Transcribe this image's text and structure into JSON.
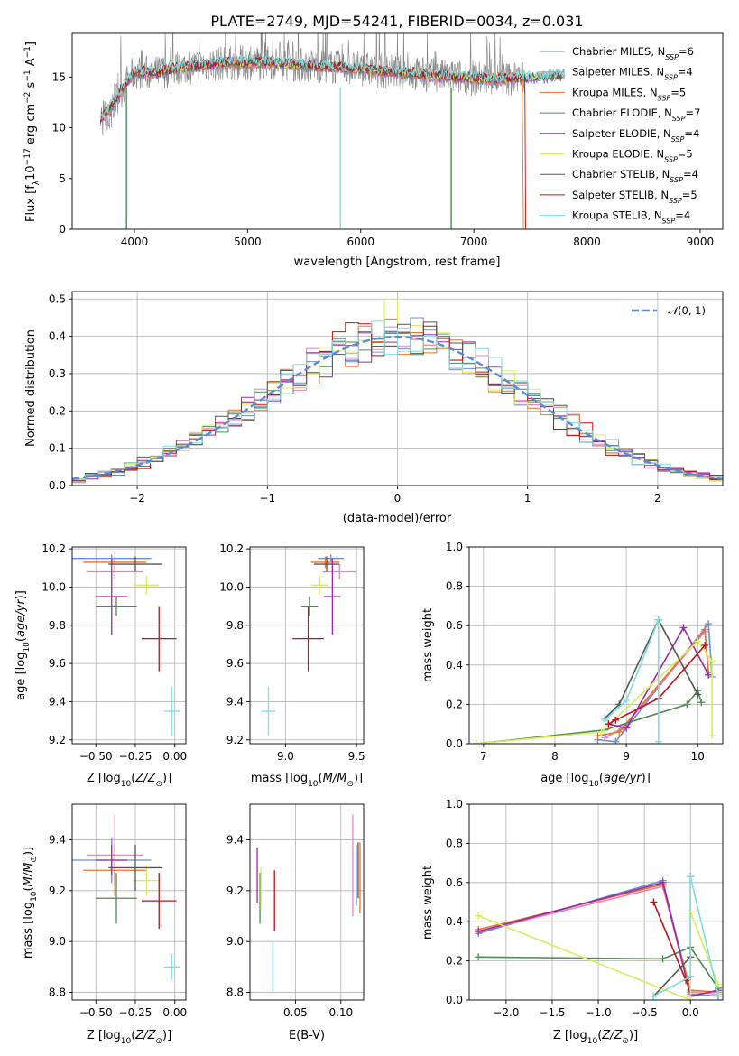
{
  "title": "PLATE=2749, MJD=54241, FIBERID=0034, z=0.031",
  "colors": {
    "chabrier_miles": "#6a8fd6",
    "salpeter_miles": "#e882c0",
    "kroupa_miles": "#e8742a",
    "chabrier_elodie": "#4f8a55",
    "salpeter_elodie": "#9b2aa5",
    "kroupa_elodie": "#d6ee58",
    "chabrier_stelib": "#555555",
    "salpeter_stelib": "#b8141b",
    "kroupa_stelib": "#7fdede",
    "observed": "#808080",
    "normal_curve": "#5b8bd6",
    "grid": "#b0b0b0"
  },
  "series_legend": [
    {
      "key": "chabrier_miles",
      "label": "Chabrier MILES, N",
      "sub": "SSP",
      "n": "=6"
    },
    {
      "key": "salpeter_miles",
      "label": "Salpeter MILES, N",
      "sub": "SSP",
      "n": "=4"
    },
    {
      "key": "kroupa_miles",
      "label": "Kroupa MILES, N",
      "sub": "SSP",
      "n": "=5"
    },
    {
      "key": "chabrier_elodie",
      "label": "Chabrier ELODIE, N",
      "sub": "SSP",
      "n": "=7"
    },
    {
      "key": "salpeter_elodie",
      "label": "Salpeter ELODIE, N",
      "sub": "SSP",
      "n": "=4"
    },
    {
      "key": "kroupa_elodie",
      "label": "Kroupa ELODIE, N",
      "sub": "SSP",
      "n": "=5"
    },
    {
      "key": "chabrier_stelib",
      "label": "Chabrier STELIB, N",
      "sub": "SSP",
      "n": "=4"
    },
    {
      "key": "salpeter_stelib",
      "label": "Salpeter STELIB, N",
      "sub": "SSP",
      "n": "=5"
    },
    {
      "key": "kroupa_stelib",
      "label": "Kroupa STELIB, N",
      "sub": "SSP",
      "n": "=4"
    }
  ],
  "chart_data": [
    {
      "id": "spectrum",
      "type": "line",
      "xlabel": "wavelength [Angstrom, rest frame]",
      "ylabel": "Flux [f_λ 10^-17 erg cm^-2 s^-1 A^-1]",
      "xlim": [
        3450,
        9200
      ],
      "ylim": [
        0,
        19.3
      ],
      "xticks": [
        4000,
        5000,
        6000,
        7000,
        8000,
        9000
      ],
      "yticks": [
        0,
        5,
        10,
        15
      ],
      "grid": false,
      "legend": "upper-right",
      "observed": {
        "x_range": [
          3700,
          7450
        ],
        "level": 16.0,
        "noise": 1.6
      },
      "model_continuum": [
        {
          "x": 3700,
          "y": 10.8
        },
        {
          "x": 3800,
          "y": 12.2
        },
        {
          "x": 3900,
          "y": 14.0
        },
        {
          "x": 4000,
          "y": 15.5
        },
        {
          "x": 4200,
          "y": 15.4
        },
        {
          "x": 4400,
          "y": 15.9
        },
        {
          "x": 4800,
          "y": 16.4
        },
        {
          "x": 5200,
          "y": 16.4
        },
        {
          "x": 5600,
          "y": 16.1
        },
        {
          "x": 6000,
          "y": 15.8
        },
        {
          "x": 6400,
          "y": 15.4
        },
        {
          "x": 6800,
          "y": 15.0
        },
        {
          "x": 7200,
          "y": 14.8
        },
        {
          "x": 7600,
          "y": 15.0
        },
        {
          "x": 7800,
          "y": 15.3
        }
      ],
      "model_end": {
        "kroupa_miles": 7430,
        "salpeter_stelib": 7450,
        "others": 7800
      },
      "dips": [
        {
          "x": 3930,
          "y": 0
        },
        {
          "x": 5820,
          "y": 0
        },
        {
          "x": 6800,
          "y": 0
        }
      ]
    },
    {
      "id": "residual_hist",
      "type": "step",
      "xlabel": "(data-model)/error",
      "ylabel": "Normed distribution",
      "xlim": [
        -2.5,
        2.5
      ],
      "ylim": [
        0,
        0.52
      ],
      "xticks": [
        -2,
        -1,
        0,
        1,
        2
      ],
      "yticks": [
        0.0,
        0.1,
        0.2,
        0.3,
        0.4,
        0.5
      ],
      "grid": true,
      "legend_label": "N(0,1)",
      "bins": [
        -2.5,
        2.5,
        50
      ],
      "highlight_bin": {
        "x": -0.05,
        "y": 0.5
      }
    },
    {
      "id": "age_vs_Z",
      "type": "errorbar",
      "xlabel": "Z [log10(Z/Z⊙)]",
      "ylabel": "age [log10(age/yr)]",
      "xlim": [
        -0.65,
        0.07
      ],
      "ylim": [
        9.18,
        10.21
      ],
      "xticks": [
        -0.5,
        -0.25,
        0.0
      ],
      "yticks": [
        9.2,
        9.4,
        9.6,
        9.8,
        10.0,
        10.2
      ],
      "points": [
        {
          "key": "chabrier_miles",
          "x": -0.4,
          "y": 10.15,
          "xerr": 0.25,
          "yerr": 0.02
        },
        {
          "key": "salpeter_miles",
          "x": -0.38,
          "y": 10.08,
          "xerr": 0.18,
          "yerr": 0.04
        },
        {
          "key": "kroupa_miles",
          "x": -0.38,
          "y": 10.13,
          "xerr": 0.2,
          "yerr": 0.03
        },
        {
          "key": "chabrier_elodie",
          "x": -0.37,
          "y": 9.9,
          "xerr": 0.13,
          "yerr": 0.05
        },
        {
          "key": "salpeter_elodie",
          "x": -0.4,
          "y": 9.95,
          "xerr": 0.1,
          "yerr": 0.2
        },
        {
          "key": "kroupa_elodie",
          "x": -0.18,
          "y": 10.01,
          "xerr": 0.08,
          "yerr": 0.05
        },
        {
          "key": "chabrier_stelib",
          "x": -0.25,
          "y": 10.12,
          "xerr": 0.17,
          "yerr": 0.04
        },
        {
          "key": "salpeter_stelib",
          "x": -0.1,
          "y": 9.73,
          "xerr": 0.11,
          "yerr": 0.17
        },
        {
          "key": "kroupa_stelib",
          "x": -0.02,
          "y": 9.35,
          "xerr": 0.05,
          "yerr": 0.13
        }
      ]
    },
    {
      "id": "age_vs_mass",
      "type": "errorbar",
      "xlabel": "mass [log10(M/M⊙)]",
      "ylabel": "",
      "xlim": [
        8.75,
        9.55
      ],
      "ylim": [
        9.18,
        10.21
      ],
      "xticks": [
        9.0,
        9.5
      ],
      "yticks": [
        9.2,
        9.4,
        9.6,
        9.8,
        10.0,
        10.2
      ],
      "points": [
        {
          "key": "chabrier_miles",
          "x": 9.32,
          "y": 10.15,
          "xerr": 0.09,
          "yerr": 0.02
        },
        {
          "key": "salpeter_miles",
          "x": 9.38,
          "y": 10.08,
          "xerr": 0.12,
          "yerr": 0.04
        },
        {
          "key": "kroupa_miles",
          "x": 9.28,
          "y": 10.13,
          "xerr": 0.1,
          "yerr": 0.03
        },
        {
          "key": "chabrier_elodie",
          "x": 9.17,
          "y": 9.9,
          "xerr": 0.06,
          "yerr": 0.05
        },
        {
          "key": "salpeter_elodie",
          "x": 9.33,
          "y": 9.95,
          "xerr": 0.06,
          "yerr": 0.2
        },
        {
          "key": "kroupa_elodie",
          "x": 9.24,
          "y": 10.01,
          "xerr": 0.06,
          "yerr": 0.05
        },
        {
          "key": "chabrier_stelib",
          "x": 9.29,
          "y": 10.12,
          "xerr": 0.09,
          "yerr": 0.04
        },
        {
          "key": "salpeter_stelib",
          "x": 9.16,
          "y": 9.73,
          "xerr": 0.11,
          "yerr": 0.17
        },
        {
          "key": "kroupa_stelib",
          "x": 8.88,
          "y": 9.35,
          "xerr": 0.05,
          "yerr": 0.13
        }
      ]
    },
    {
      "id": "weight_vs_age",
      "type": "line",
      "xlabel": "age [log10(age/yr)]",
      "ylabel": "mass weight",
      "xlim": [
        6.8,
        10.35
      ],
      "ylim": [
        0,
        1
      ],
      "xticks": [
        7,
        8,
        9,
        10
      ],
      "yticks": [
        0.0,
        0.2,
        0.4,
        0.6,
        0.8,
        1.0
      ],
      "grid": true,
      "series": [
        {
          "key": "chabrier_miles",
          "x": [
            8.6,
            8.85,
            10.15,
            10.2
          ],
          "y": [
            0.02,
            0.01,
            0.61,
            0.34
          ]
        },
        {
          "key": "salpeter_miles",
          "x": [
            8.7,
            8.95,
            10.1,
            10.15
          ],
          "y": [
            0.03,
            0.08,
            0.57,
            0.36
          ]
        },
        {
          "key": "kroupa_miles",
          "x": [
            8.6,
            8.9,
            10.1,
            10.15
          ],
          "y": [
            0.04,
            0.06,
            0.58,
            0.35
          ]
        },
        {
          "key": "chabrier_elodie",
          "x": [
            6.9,
            8.7,
            9.85,
            10.0,
            10.05
          ],
          "y": [
            0.0,
            0.07,
            0.2,
            0.27,
            0.21
          ]
        },
        {
          "key": "salpeter_elodie",
          "x": [
            8.75,
            9.0,
            9.8,
            10.15
          ],
          "y": [
            0.1,
            0.08,
            0.59,
            0.35
          ]
        },
        {
          "key": "kroupa_elodie",
          "x": [
            6.9,
            8.65,
            10.0,
            10.2,
            10.2
          ],
          "y": [
            0.0,
            0.06,
            0.52,
            0.42,
            0.04
          ]
        },
        {
          "key": "chabrier_stelib",
          "x": [
            8.7,
            8.9,
            9.45,
            10.0
          ],
          "y": [
            0.13,
            0.2,
            0.63,
            0.25
          ]
        },
        {
          "key": "salpeter_stelib",
          "x": [
            8.75,
            8.85,
            9.45,
            10.1
          ],
          "y": [
            0.1,
            0.12,
            0.23,
            0.5
          ]
        },
        {
          "key": "kroupa_stelib",
          "x": [
            8.7,
            9.0,
            9.45,
            9.45
          ],
          "y": [
            0.12,
            0.22,
            0.63,
            0.01
          ]
        }
      ]
    },
    {
      "id": "mass_vs_Z",
      "type": "errorbar",
      "xlabel": "Z [log10(Z/Z⊙)]",
      "ylabel": "mass [log10(M/M⊙)]",
      "xlim": [
        -0.65,
        0.07
      ],
      "ylim": [
        8.77,
        9.54
      ],
      "xticks": [
        -0.5,
        -0.25,
        0.0
      ],
      "yticks": [
        8.8,
        9.0,
        9.2,
        9.4
      ],
      "points": [
        {
          "key": "chabrier_miles",
          "x": -0.4,
          "y": 9.32,
          "xerr": 0.25,
          "yerr": 0.09
        },
        {
          "key": "salpeter_miles",
          "x": -0.38,
          "y": 9.34,
          "xerr": 0.18,
          "yerr": 0.16
        },
        {
          "key": "kroupa_miles",
          "x": -0.38,
          "y": 9.28,
          "xerr": 0.2,
          "yerr": 0.1
        },
        {
          "key": "chabrier_elodie",
          "x": -0.37,
          "y": 9.17,
          "xerr": 0.13,
          "yerr": 0.1
        },
        {
          "key": "salpeter_elodie",
          "x": -0.4,
          "y": 9.32,
          "xerr": 0.1,
          "yerr": 0.06
        },
        {
          "key": "kroupa_elodie",
          "x": -0.18,
          "y": 9.24,
          "xerr": 0.08,
          "yerr": 0.06
        },
        {
          "key": "chabrier_stelib",
          "x": -0.25,
          "y": 9.29,
          "xerr": 0.17,
          "yerr": 0.09
        },
        {
          "key": "salpeter_stelib",
          "x": -0.1,
          "y": 9.16,
          "xerr": 0.11,
          "yerr": 0.11
        },
        {
          "key": "kroupa_stelib",
          "x": -0.02,
          "y": 8.9,
          "xerr": 0.05,
          "yerr": 0.05
        }
      ]
    },
    {
      "id": "mass_vs_ebv",
      "type": "errorbar",
      "xlabel": "E(B-V)",
      "ylabel": "",
      "xlim": [
        0.0,
        0.125
      ],
      "ylim": [
        8.77,
        9.54
      ],
      "xticks": [
        0.05,
        0.1
      ],
      "yticks": [
        8.8,
        9.0,
        9.2,
        9.4
      ],
      "points": [
        {
          "key": "chabrier_miles",
          "x": 0.117,
          "y": 9.26,
          "xerr": 0,
          "yerr": 0.12
        },
        {
          "key": "salpeter_miles",
          "x": 0.113,
          "y": 9.3,
          "xerr": 0,
          "yerr": 0.2
        },
        {
          "key": "kroupa_miles",
          "x": 0.121,
          "y": 9.25,
          "xerr": 0,
          "yerr": 0.14
        },
        {
          "key": "chabrier_elodie",
          "x": 0.011,
          "y": 9.17,
          "xerr": 0,
          "yerr": 0.1
        },
        {
          "key": "salpeter_elodie",
          "x": 0.008,
          "y": 9.26,
          "xerr": 0,
          "yerr": 0.11
        },
        {
          "key": "kroupa_elodie",
          "x": 0.012,
          "y": 9.21,
          "xerr": 0,
          "yerr": 0.08
        },
        {
          "key": "chabrier_stelib",
          "x": 0.119,
          "y": 9.28,
          "xerr": 0,
          "yerr": 0.11
        },
        {
          "key": "salpeter_stelib",
          "x": 0.027,
          "y": 9.16,
          "xerr": 0,
          "yerr": 0.12
        },
        {
          "key": "kroupa_stelib",
          "x": 0.025,
          "y": 8.9,
          "xerr": 0,
          "yerr": 0.1
        }
      ]
    },
    {
      "id": "weight_vs_Z",
      "type": "line",
      "xlabel": "Z [log10(Z/Z⊙)]",
      "ylabel": "mass weight",
      "xlim": [
        -2.4,
        0.35
      ],
      "ylim": [
        0,
        1
      ],
      "xticks": [
        -2.0,
        -1.5,
        -1.0,
        -0.5,
        0.0
      ],
      "yticks": [
        0.0,
        0.2,
        0.4,
        0.6,
        0.8,
        1.0
      ],
      "grid": true,
      "series": [
        {
          "key": "chabrier_miles",
          "x": [
            -2.3,
            -0.3,
            0.0,
            0.3
          ],
          "y": [
            0.34,
            0.61,
            0.03,
            0.02
          ]
        },
        {
          "key": "salpeter_miles",
          "x": [
            -2.3,
            -0.3,
            0.0,
            0.3
          ],
          "y": [
            0.35,
            0.58,
            0.04,
            0.03
          ]
        },
        {
          "key": "kroupa_miles",
          "x": [
            -2.3,
            -0.3,
            0.0,
            0.3
          ],
          "y": [
            0.36,
            0.59,
            0.05,
            0.04
          ]
        },
        {
          "key": "chabrier_elodie",
          "x": [
            -2.3,
            -0.3,
            0.0,
            0.3
          ],
          "y": [
            0.22,
            0.21,
            0.27,
            0.06
          ]
        },
        {
          "key": "salpeter_elodie",
          "x": [
            -2.3,
            -0.3,
            0.0,
            0.3
          ],
          "y": [
            0.35,
            0.6,
            0.02,
            0.05
          ]
        },
        {
          "key": "kroupa_elodie",
          "x": [
            -2.3,
            0.0,
            0.0,
            0.3
          ],
          "y": [
            0.43,
            0.0,
            0.45,
            0.08
          ]
        },
        {
          "key": "chabrier_stelib",
          "x": [
            -0.4,
            0.0,
            0.0
          ],
          "y": [
            0.02,
            0.22,
            0.63
          ]
        },
        {
          "key": "salpeter_stelib",
          "x": [
            -0.4,
            -0.05,
            0.0
          ],
          "y": [
            0.5,
            0.1,
            0.12
          ]
        },
        {
          "key": "kroupa_stelib",
          "x": [
            -0.4,
            0.0,
            0.0,
            0.3
          ],
          "y": [
            0.02,
            0.12,
            0.63,
            0.03
          ]
        }
      ]
    }
  ]
}
